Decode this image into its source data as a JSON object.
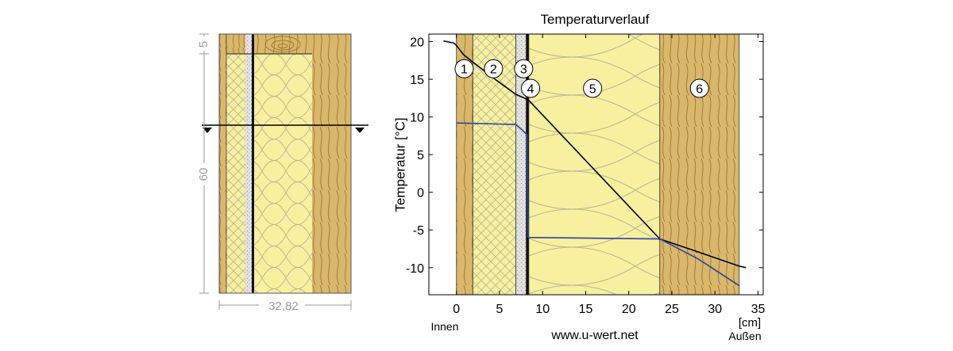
{
  "section": {
    "dim_top": "5",
    "dim_main": "60",
    "dim_total": "32,82"
  },
  "chart_data": {
    "type": "line",
    "title": "Temperaturverlauf",
    "ylabel": "Temperatur [°C]",
    "xlabel": "[cm]",
    "xlim": [
      -3.2,
      35.6
    ],
    "ylim": [
      -13.6,
      21
    ],
    "x_ticks": [
      0,
      5,
      10,
      15,
      20,
      25,
      30,
      35
    ],
    "y_ticks": [
      20,
      15,
      10,
      5,
      0,
      -5,
      -10
    ],
    "layers": [
      {
        "id": "1",
        "x0": 0,
        "x1": 1.9,
        "material": "wood"
      },
      {
        "id": "2",
        "x0": 1.9,
        "x1": 6.9,
        "material": "insulation-fibre"
      },
      {
        "id": "3",
        "x0": 6.9,
        "x1": 8.1,
        "material": "board"
      },
      {
        "id": "4",
        "x0": 8.1,
        "x1": 8.4,
        "material": "membrane"
      },
      {
        "id": "5",
        "x0": 8.4,
        "x1": 23.6,
        "material": "insulation"
      },
      {
        "id": "6",
        "x0": 23.6,
        "x1": 32.82,
        "material": "wood"
      }
    ],
    "layer_labels": [
      {
        "id": "1",
        "x": 0.9,
        "y": 16.4
      },
      {
        "id": "2",
        "x": 4.3,
        "y": 16.4
      },
      {
        "id": "3",
        "x": 7.8,
        "y": 16.4
      },
      {
        "id": "4",
        "x": 8.6,
        "y": 13.8
      },
      {
        "id": "5",
        "x": 15.8,
        "y": 13.8
      },
      {
        "id": "6",
        "x": 28.2,
        "y": 13.8
      }
    ],
    "series": [
      {
        "color": "#000000",
        "x": [
          -1.5,
          -0.3,
          0,
          0.8,
          1.9,
          4.5,
          6.9,
          8.1,
          8.4,
          23.6,
          28,
          32.82,
          33.6
        ],
        "y": [
          20.1,
          19.8,
          19.5,
          18.3,
          17.3,
          15.0,
          13.0,
          12.4,
          12.2,
          -6.2,
          -7.9,
          -9.8,
          -10.0
        ]
      },
      {
        "color": "#2a43a6",
        "x": [
          0,
          6.9,
          7.8,
          8.2,
          8.3,
          8.4,
          23.6,
          28,
          32.82
        ],
        "y": [
          9.2,
          9.0,
          8.1,
          7.6,
          -5.9,
          -6.0,
          -6.2,
          -8.8,
          -12.4
        ]
      }
    ],
    "left_label": "Innen",
    "right_label": "Außen",
    "footer": "www.u-wert.net"
  }
}
